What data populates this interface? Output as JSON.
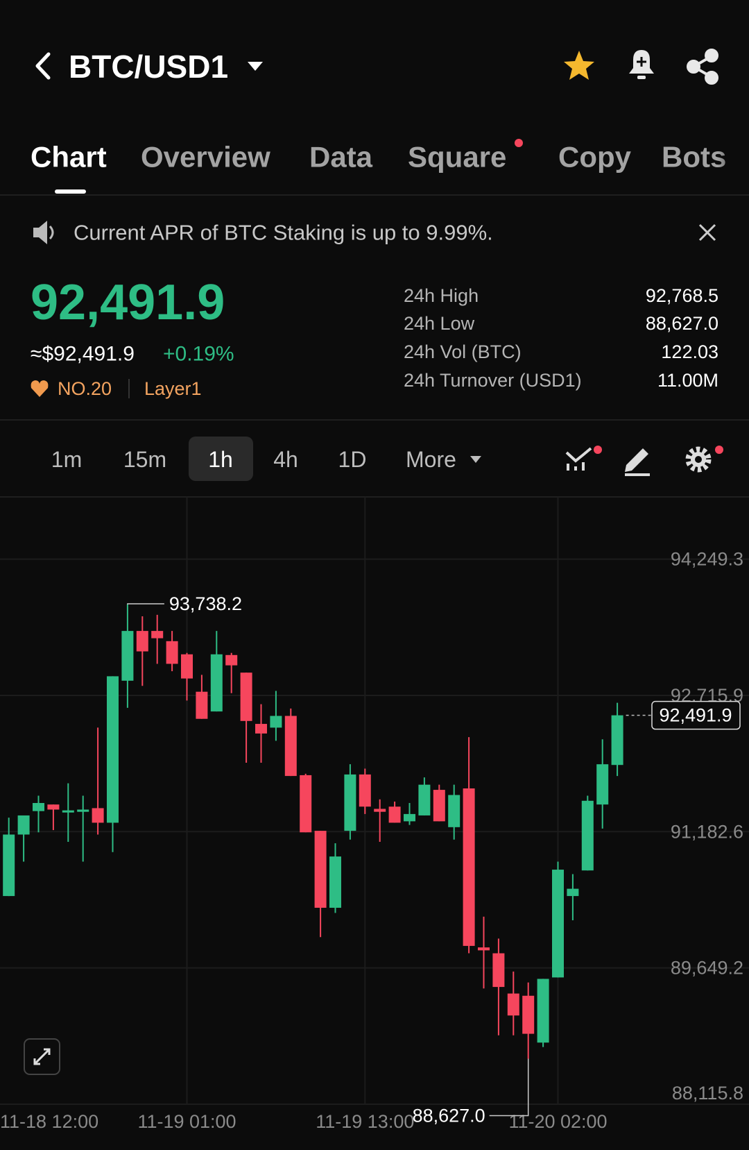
{
  "header": {
    "pair": "BTC/USD1"
  },
  "tabs": [
    "Chart",
    "Overview",
    "Data",
    "Square",
    "Copy",
    "Bots"
  ],
  "notice": "Current APR of BTC Staking is up to 9.99%.",
  "price": {
    "last": "92,491.9",
    "usd": "≈$92,491.9",
    "change": "+0.19%",
    "rank": "NO.20",
    "tag": "Layer1"
  },
  "stats": [
    {
      "label": "24h High",
      "value": "92,768.5"
    },
    {
      "label": "24h Low",
      "value": "88,627.0"
    },
    {
      "label": "24h Vol (BTC)",
      "value": "122.03"
    },
    {
      "label": "24h Turnover (USD1)",
      "value": "11.00M"
    }
  ],
  "timeframes": [
    "1m",
    "15m",
    "1h",
    "4h",
    "1D"
  ],
  "more": "More",
  "chart_data": {
    "type": "candlestick",
    "categories": [
      "11-18 12:00",
      null,
      null,
      null,
      null,
      null,
      null,
      null,
      null,
      null,
      null,
      null,
      null,
      "11-19 01:00",
      null,
      null,
      null,
      null,
      null,
      null,
      null,
      null,
      null,
      null,
      null,
      "11-19 13:00",
      null,
      null,
      null,
      null,
      null,
      null,
      null,
      null,
      null,
      null,
      null,
      null,
      "11-20 02:00",
      null,
      null,
      null,
      null
    ],
    "open": [
      null,
      90458,
      91150,
      91414,
      91488,
      91398,
      91406,
      91447,
      91283,
      92881,
      93441,
      93441,
      93326,
      93178,
      92757,
      92535,
      93170,
      92972,
      92395,
      92353,
      92485,
      91818,
      91192,
      90326,
      91192,
      91826,
      91439,
      91464,
      91299,
      91365,
      91653,
      91233,
      91669,
      89880,
      89814,
      89361,
      89336,
      88809,
      89542,
      90458,
      90746,
      91488,
      91933
    ],
    "high": [
      null,
      91340,
      91365,
      91587,
      91488,
      91727,
      91587,
      92353,
      92931,
      93738.2,
      93606,
      93622,
      93441,
      93194,
      92947,
      93441,
      93194,
      92972,
      92617,
      92766,
      92568,
      91834,
      91192,
      91052,
      91941,
      91892,
      91546,
      91521,
      91505,
      91793,
      91711,
      91711,
      92246,
      90226,
      89979,
      89608,
      89485,
      89526,
      90845,
      90705,
      91587,
      92222,
      92633
    ],
    "low": [
      null,
      90458,
      90845,
      91175,
      91200,
      91068,
      90845,
      91150,
      90953,
      92576,
      92823,
      93071,
      92988,
      92658,
      92452,
      92535,
      92741,
      91958,
      91958,
      92205,
      91809,
      91175,
      89996,
      90268,
      91093,
      91381,
      91068,
      91283,
      91258,
      91365,
      91299,
      91093,
      89814,
      89418,
      88891,
      88891,
      88627,
      88759,
      89542,
      90185,
      90746,
      91217,
      91809
    ],
    "close": [
      null,
      91150,
      91365,
      91505,
      91431,
      91422,
      91431,
      91283,
      92931,
      93441,
      93211,
      93359,
      93071,
      92906,
      92452,
      93178,
      93054,
      92428,
      92287,
      92485,
      91809,
      91175,
      90326,
      90903,
      91826,
      91464,
      91406,
      91283,
      91381,
      91711,
      91299,
      91595,
      89897,
      89847,
      89435,
      89114,
      88908,
      89526,
      90755,
      90540,
      91530,
      91941,
      92491.9
    ],
    "up_color": "#2ebd85",
    "down_color": "#f6465d",
    "ylim": [
      88115.8,
      94925.6
    ],
    "yticks": [
      {
        "value": 94249.3,
        "label": "94,249.3"
      },
      {
        "value": 92715.9,
        "label": "92,715.9"
      },
      {
        "value": 91182.6,
        "label": "91,182.6"
      },
      {
        "value": 89649.2,
        "label": "89,649.2"
      },
      {
        "value": 88115.8,
        "label": "88,115.8"
      }
    ],
    "grid": true,
    "annotations": [
      {
        "label": "93,738.2",
        "value": 93738.2
      },
      {
        "label": "88,627.0",
        "value": 88627.0
      }
    ],
    "last_price": {
      "label": "92,491.9",
      "value": 92491.9
    }
  }
}
